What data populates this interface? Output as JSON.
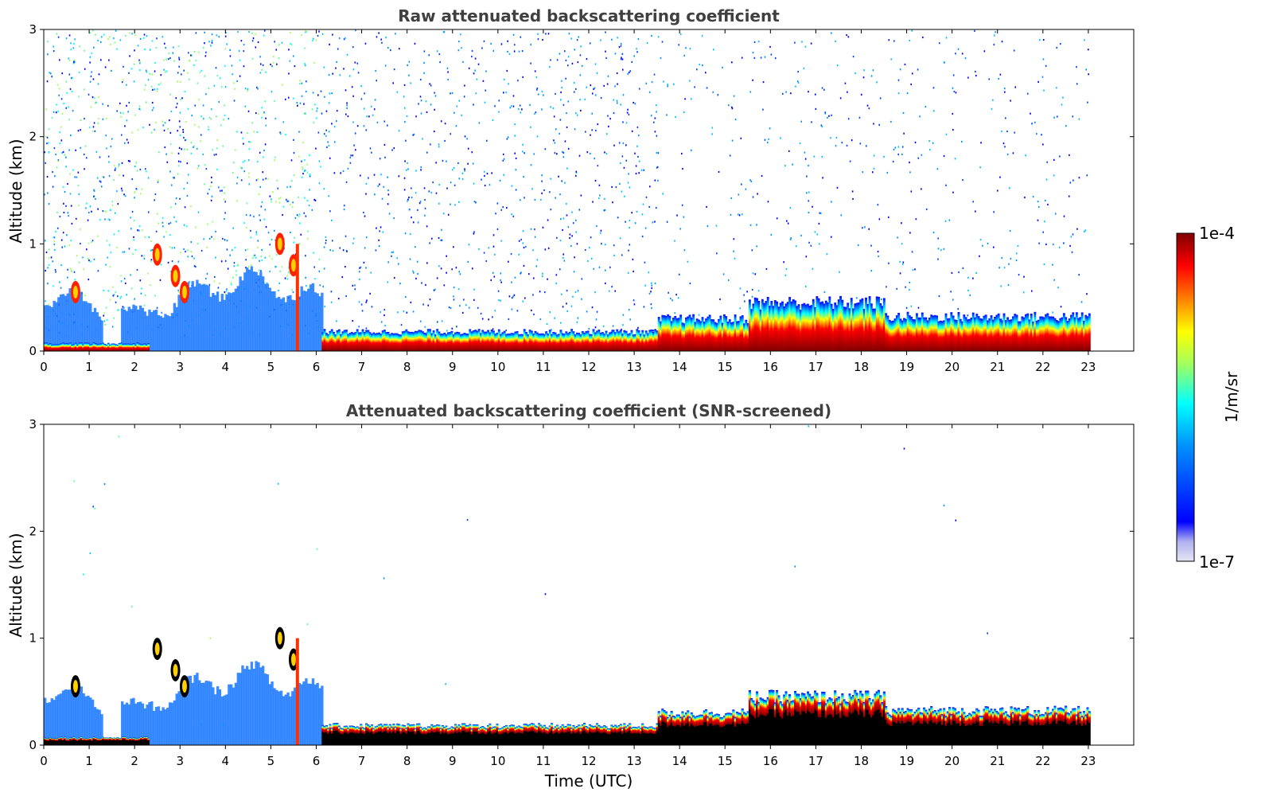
{
  "chart_data": [
    {
      "type": "heatmap",
      "title": "Raw attenuated backscattering coefficient",
      "xlabel": "",
      "ylabel": "Altitude (km)",
      "xlim": [
        0,
        24
      ],
      "ylim": [
        0,
        3
      ],
      "x_ticks": [
        "0",
        "1",
        "2",
        "3",
        "4",
        "5",
        "6",
        "7",
        "8",
        "9",
        "10",
        "11",
        "12",
        "13",
        "14",
        "15",
        "16",
        "17",
        "18",
        "19",
        "20",
        "21",
        "22",
        "23"
      ],
      "y_ticks": [
        "0",
        "1",
        "2",
        "3"
      ],
      "data_end_hour": 23,
      "features": {
        "surface_layer_top_km": [
          {
            "from_h": 0,
            "to_h": 2.3,
            "top_km": 0.07
          },
          {
            "from_h": 6.1,
            "to_h": 13.5,
            "top_km": 0.18
          },
          {
            "from_h": 13.5,
            "to_h": 15.5,
            "top_km": 0.3
          },
          {
            "from_h": 15.5,
            "to_h": 18.5,
            "top_km": 0.45
          },
          {
            "from_h": 18.5,
            "to_h": 23,
            "top_km": 0.32
          }
        ],
        "aerosol_layer_top_km": [
          {
            "from_h": 0,
            "to_h": 2.3,
            "top_km": 0.5
          },
          {
            "from_h": 2.3,
            "to_h": 6.1,
            "top_km": 0.65
          }
        ],
        "cloud_patches": [
          {
            "t_h": 0.7,
            "alt_km": 0.55
          },
          {
            "t_h": 2.5,
            "alt_km": 0.9
          },
          {
            "t_h": 2.9,
            "alt_km": 0.7
          },
          {
            "t_h": 3.1,
            "alt_km": 0.55
          },
          {
            "t_h": 5.2,
            "alt_km": 1.0
          },
          {
            "t_h": 5.5,
            "alt_km": 0.8
          }
        ],
        "noise_extent_h": [
          0,
          23
        ]
      }
    },
    {
      "type": "heatmap",
      "title": "Attenuated backscattering coefficient (SNR-screened)",
      "xlabel": "Time (UTC)",
      "ylabel": "Altitude (km)",
      "xlim": [
        0,
        24
      ],
      "ylim": [
        0,
        3
      ],
      "x_ticks": [
        "0",
        "1",
        "2",
        "3",
        "4",
        "5",
        "6",
        "7",
        "8",
        "9",
        "10",
        "11",
        "12",
        "13",
        "14",
        "15",
        "16",
        "17",
        "18",
        "19",
        "20",
        "21",
        "22",
        "23"
      ],
      "y_ticks": [
        "0",
        "1",
        "2",
        "3"
      ],
      "data_end_hour": 23
    }
  ],
  "colorbar": {
    "label": "1/m/sr",
    "max_label": "1e-4",
    "min_label": "1e-7",
    "scale": "log",
    "colormap": "jet",
    "colors": [
      "#e6e6f5",
      "#0000ff",
      "#00a0ff",
      "#00ffff",
      "#a0ff60",
      "#ffff00",
      "#ff8000",
      "#ff0000",
      "#800000"
    ]
  }
}
